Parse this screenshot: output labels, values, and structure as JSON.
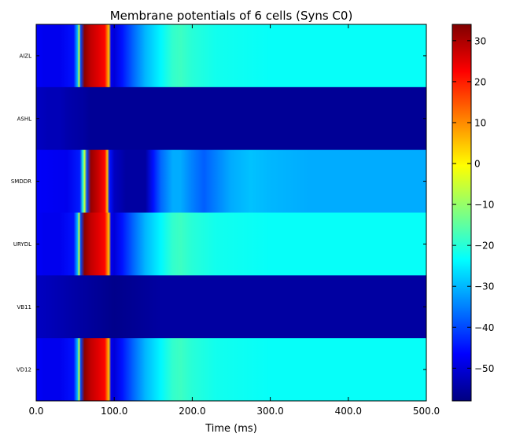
{
  "chart_data": {
    "type": "heatmap",
    "title": "Membrane potentials of 6 cells (Syns C0)",
    "xlabel": "Time (ms)",
    "ylabel": "",
    "xlim": [
      0,
      500
    ],
    "x_ticks": [
      "0.0",
      "100.0",
      "200.0",
      "300.0",
      "400.0",
      "500.0"
    ],
    "rows": [
      "AIZL",
      "ASHL",
      "SMDDR",
      "URYDL",
      "VB11",
      "VD12"
    ],
    "colorbar": {
      "colormap": "jet",
      "vmin": -58,
      "vmax": 34,
      "ticks": [
        "30",
        "20",
        "10",
        "0",
        "−10",
        "−20",
        "−30",
        "−40",
        "−50"
      ],
      "tick_values": [
        30,
        20,
        10,
        0,
        -10,
        -20,
        -30,
        -40,
        -50
      ]
    },
    "series": [
      {
        "name": "AIZL",
        "t": [
          0,
          10,
          30,
          48,
          53,
          55,
          57,
          62,
          70,
          80,
          88,
          93,
          96,
          100,
          110,
          125,
          140,
          160,
          175,
          185,
          200,
          230,
          300,
          500
        ],
        "v": [
          -47,
          -48,
          -48,
          -45,
          -30,
          -5,
          -40,
          33,
          28,
          25,
          22,
          5,
          -48,
          -50,
          -45,
          -37,
          -30,
          -24,
          -19,
          -18,
          -20,
          -22,
          -23,
          -23
        ]
      },
      {
        "name": "ASHL",
        "t": [
          0,
          15,
          30,
          40,
          60,
          70,
          500
        ],
        "v": [
          -52,
          -53,
          -53,
          -54,
          -55,
          -56,
          -56
        ]
      },
      {
        "name": "SMDDR",
        "t": [
          0,
          40,
          56,
          60,
          62,
          65,
          70,
          80,
          88,
          91,
          94,
          100,
          115,
          140,
          150,
          160,
          175,
          185,
          200,
          215,
          230,
          250,
          275,
          300,
          350,
          500
        ],
        "v": [
          -47,
          -48,
          -44,
          -20,
          -5,
          -40,
          32,
          27,
          22,
          5,
          -45,
          -52,
          -55,
          -55,
          -45,
          -37,
          -31,
          -31,
          -35,
          -38,
          -35,
          -31,
          -29,
          -30,
          -31,
          -31
        ]
      },
      {
        "name": "URYDL",
        "t": [
          0,
          10,
          30,
          48,
          53,
          55,
          57,
          62,
          70,
          80,
          88,
          93,
          96,
          100,
          110,
          125,
          140,
          160,
          175,
          185,
          200,
          230,
          300,
          500
        ],
        "v": [
          -47,
          -48,
          -48,
          -45,
          -30,
          -5,
          -40,
          33,
          28,
          25,
          22,
          5,
          -48,
          -50,
          -45,
          -37,
          -30,
          -24,
          -19,
          -18,
          -20,
          -22,
          -23,
          -23
        ]
      },
      {
        "name": "VB11",
        "t": [
          0,
          20,
          40,
          60,
          80,
          100,
          130,
          160,
          200,
          500
        ],
        "v": [
          -52,
          -53,
          -54,
          -55,
          -56,
          -57,
          -56,
          -55,
          -55,
          -55
        ]
      },
      {
        "name": "VD12",
        "t": [
          0,
          10,
          30,
          48,
          53,
          55,
          57,
          62,
          70,
          80,
          88,
          93,
          96,
          100,
          110,
          125,
          140,
          160,
          175,
          185,
          200,
          230,
          300,
          500
        ],
        "v": [
          -47,
          -48,
          -48,
          -45,
          -30,
          -5,
          -40,
          33,
          28,
          25,
          22,
          5,
          -48,
          -50,
          -45,
          -37,
          -30,
          -24,
          -19,
          -18,
          -20,
          -22,
          -23,
          -23
        ]
      }
    ]
  }
}
